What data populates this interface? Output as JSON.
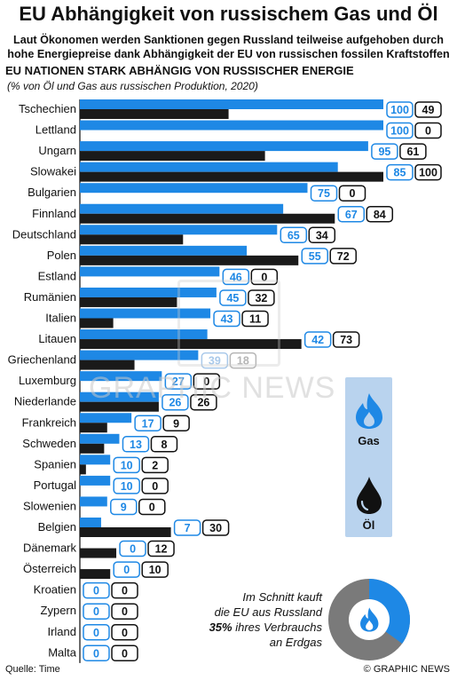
{
  "header": {
    "title": "EU Abhängigkeit von russischem Gas und Öl",
    "subtitle_line1": "Laut Ökonomen werden Sanktionen gegen Russland teilweise aufgehoben durch",
    "subtitle_line2": "hohe Energiepreise dank Abhängigkeit der EU von russischen fossilen Kraftstoffen"
  },
  "chart_data": {
    "type": "bar",
    "orientation": "horizontal",
    "title": "EU NATIONEN STARK ABHÄNGIG VON RUSSISCHER ENERGIE",
    "subtitle": "(% von Öl und Gas aus russischen Produktion, 2020)",
    "xlim": [
      0,
      100
    ],
    "categories": [
      "Tschechien",
      "Lettland",
      "Ungarn",
      "Slowakei",
      "Bulgarien",
      "Finnland",
      "Deutschland",
      "Polen",
      "Estland",
      "Rumänien",
      "Italien",
      "Litauen",
      "Griechenland",
      "Luxemburg",
      "Niederlande",
      "Frankreich",
      "Schweden",
      "Spanien",
      "Portugal",
      "Slowenien",
      "Belgien",
      "Dänemark",
      "Österreich",
      "Kroatien",
      "Zypern",
      "Irland",
      "Malta"
    ],
    "series": [
      {
        "name": "Gas",
        "color": "#1e88e5",
        "values": [
          100,
          100,
          95,
          85,
          75,
          67,
          65,
          55,
          46,
          45,
          43,
          42,
          39,
          27,
          26,
          17,
          13,
          10,
          10,
          9,
          7,
          0,
          0,
          0,
          0,
          0,
          0
        ]
      },
      {
        "name": "Öl",
        "color": "#1a1a1a",
        "values": [
          49,
          0,
          61,
          100,
          0,
          84,
          34,
          72,
          0,
          32,
          11,
          73,
          18,
          0,
          26,
          9,
          8,
          2,
          0,
          0,
          30,
          12,
          10,
          0,
          0,
          0,
          0
        ]
      }
    ],
    "legend": {
      "placement": "right",
      "gas_label": "Gas",
      "oil_label": "Öl",
      "gas_icon": "flame-icon",
      "oil_icon": "oil-drop-icon"
    }
  },
  "callout": {
    "line1": "Im Schnitt kauft",
    "line2": "die EU aus Russland",
    "line3_bold": "35%",
    "line3_rest": " ihres Verbrauchs",
    "line4": "an Erdgas",
    "share": 35,
    "icon": "flame-icon"
  },
  "watermark": "GRAPHIC NEWS",
  "footer": {
    "source": "Quelle: Time",
    "credit": "© GRAPHIC NEWS"
  },
  "colors": {
    "gas": "#1e88e5",
    "oil": "#1a1a1a",
    "legend_bg": "#b9d3ee",
    "donut_gray": "#7a7a7a"
  }
}
